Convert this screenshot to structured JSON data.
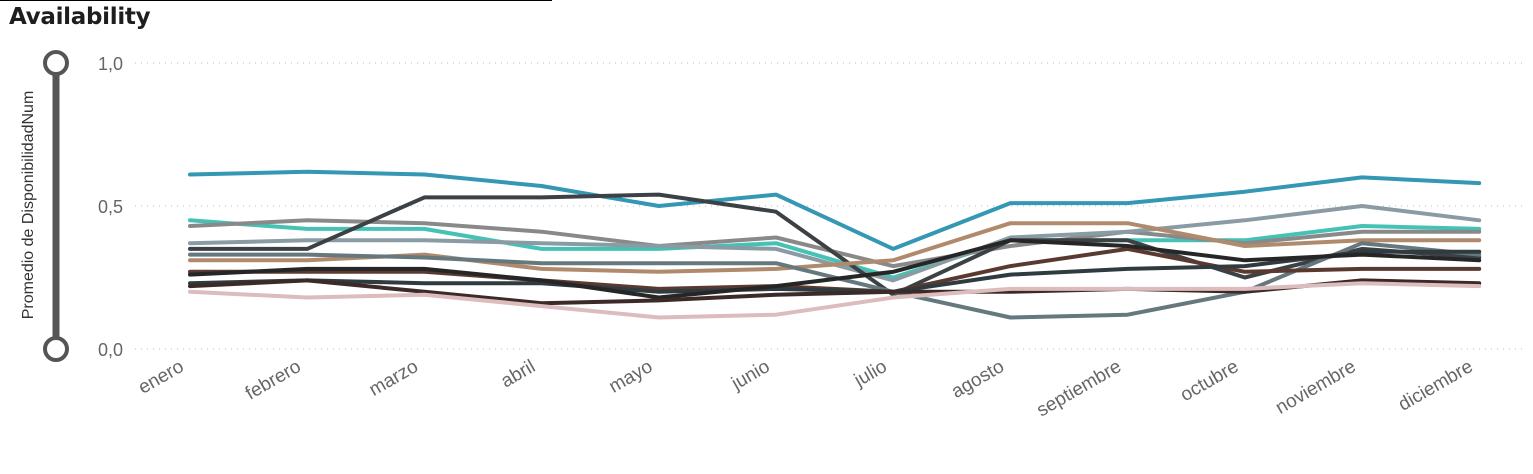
{
  "header": {
    "title": "Availability"
  },
  "chart_data": {
    "type": "line",
    "title": "Availability",
    "xlabel": "",
    "ylabel": "Promedio de DisponibilidadNum",
    "ylim": [
      0,
      1
    ],
    "yticks": [
      "0,0",
      "0,5",
      "1,0"
    ],
    "ytick_values": [
      0,
      0.5,
      1
    ],
    "grid": true,
    "legend": "none",
    "categories": [
      "enero",
      "febrero",
      "marzo",
      "abril",
      "mayo",
      "junio",
      "julio",
      "agosto",
      "septiembre",
      "octubre",
      "noviembre",
      "diciembre"
    ],
    "series": [
      {
        "color": "#3497b3",
        "values": [
          0.61,
          0.62,
          0.61,
          0.57,
          0.5,
          0.54,
          0.35,
          0.51,
          0.51,
          0.55,
          0.6,
          0.58
        ]
      },
      {
        "color": "#45c2b5",
        "values": [
          0.45,
          0.42,
          0.42,
          0.35,
          0.35,
          0.37,
          0.25,
          0.38,
          0.38,
          0.38,
          0.43,
          0.42
        ]
      },
      {
        "color": "#898989",
        "values": [
          0.43,
          0.45,
          0.44,
          0.41,
          0.36,
          0.39,
          0.29,
          0.36,
          0.41,
          0.37,
          0.41,
          0.41
        ]
      },
      {
        "color": "#8a9ca3",
        "values": [
          0.37,
          0.38,
          0.38,
          0.37,
          0.36,
          0.35,
          0.24,
          0.39,
          0.41,
          0.45,
          0.5,
          0.45
        ]
      },
      {
        "color": "#3c4145",
        "values": [
          0.35,
          0.35,
          0.53,
          0.53,
          0.54,
          0.48,
          0.19,
          0.38,
          0.38,
          0.25,
          0.35,
          0.32
        ]
      },
      {
        "color": "#b08a6c",
        "values": [
          0.31,
          0.31,
          0.33,
          0.28,
          0.27,
          0.28,
          0.31,
          0.44,
          0.44,
          0.36,
          0.38,
          0.38
        ]
      },
      {
        "color": "#64787e",
        "values": [
          0.33,
          0.33,
          0.32,
          0.3,
          0.3,
          0.3,
          0.2,
          0.11,
          0.12,
          0.2,
          0.37,
          0.33
        ]
      },
      {
        "color": "#5a3a30",
        "values": [
          0.27,
          0.27,
          0.27,
          0.24,
          0.21,
          0.22,
          0.2,
          0.29,
          0.35,
          0.27,
          0.28,
          0.28
        ]
      },
      {
        "color": "#2f3b3f",
        "values": [
          0.23,
          0.24,
          0.23,
          0.23,
          0.2,
          0.21,
          0.2,
          0.26,
          0.28,
          0.29,
          0.34,
          0.34
        ]
      },
      {
        "color": "#262626",
        "values": [
          0.26,
          0.28,
          0.28,
          0.24,
          0.18,
          0.22,
          0.27,
          0.38,
          0.36,
          0.31,
          0.33,
          0.31
        ]
      },
      {
        "color": "#3b2a27",
        "values": [
          0.22,
          0.24,
          0.2,
          0.16,
          0.17,
          0.19,
          0.2,
          0.2,
          0.21,
          0.2,
          0.24,
          0.23
        ]
      },
      {
        "color": "#dcbcbd",
        "values": [
          0.2,
          0.18,
          0.19,
          0.15,
          0.11,
          0.12,
          0.18,
          0.21,
          0.21,
          0.21,
          0.23,
          0.22
        ]
      }
    ]
  }
}
